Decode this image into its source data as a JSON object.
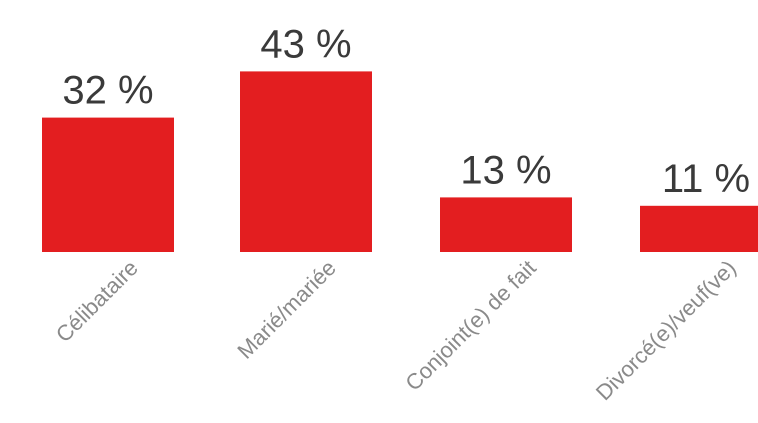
{
  "chart_data": {
    "type": "bar",
    "categories": [
      "Célibataire",
      "Marié/mariée",
      "Conjoint(e) de fait",
      "Divorcé(e)/veuf(ve)"
    ],
    "values": [
      32,
      43,
      13,
      11
    ],
    "value_labels": [
      "32 %",
      "43 %",
      "13 %",
      "11 %"
    ],
    "ylim": [
      0,
      50
    ],
    "grid": false,
    "colors": {
      "bar": "#e31e20",
      "value_text": "#3a3a3a",
      "tick_text": "#8a8a8a"
    }
  }
}
